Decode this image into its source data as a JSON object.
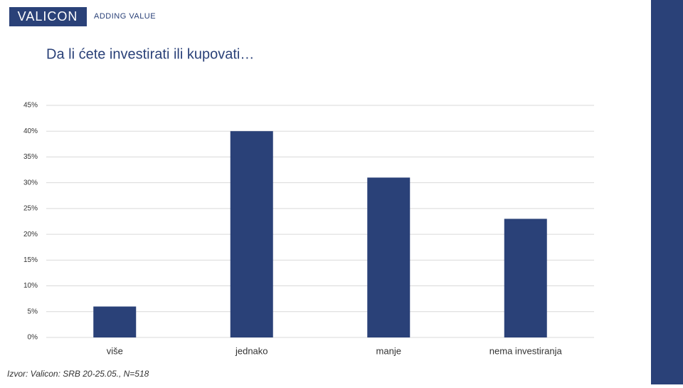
{
  "header": {
    "logo": "VALICON",
    "tagline": "ADDING VALUE"
  },
  "chart_data": {
    "type": "bar",
    "title": "Da li ćete investirati ili kupovati…",
    "categories": [
      "više",
      "jednako",
      "manje",
      "nema investiranja"
    ],
    "values": [
      6,
      40,
      31,
      23
    ],
    "color": "#2a4178",
    "ylim": [
      0,
      45
    ],
    "yticks": [
      {
        "value": 0,
        "label": "0%"
      },
      {
        "value": 5,
        "label": "5%"
      },
      {
        "value": 10,
        "label": "10%"
      },
      {
        "value": 15,
        "label": "15%"
      },
      {
        "value": 20,
        "label": "20%"
      },
      {
        "value": 25,
        "label": "25%"
      },
      {
        "value": 30,
        "label": "30%"
      },
      {
        "value": 35,
        "label": "35%"
      },
      {
        "value": 40,
        "label": "40%"
      },
      {
        "value": 45,
        "label": "45%"
      }
    ],
    "grid": true
  },
  "footer": {
    "source": "Izvor: Valicon: SRB 20-25.05., N=518"
  }
}
